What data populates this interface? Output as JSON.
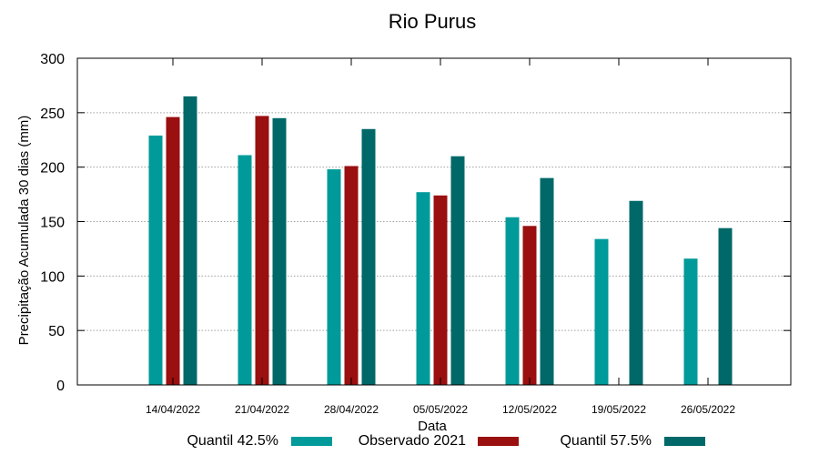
{
  "chart_data": {
    "type": "bar",
    "title": "Rio Purus",
    "xlabel": "Data",
    "ylabel": "Precipitação Acumulada 30 dias (mm)",
    "ylim": [
      0,
      300
    ],
    "yticks": [
      0,
      50,
      100,
      150,
      200,
      250,
      300
    ],
    "grid": true,
    "legend_position": "bottom",
    "categories": [
      "14/04/2022",
      "21/04/2022",
      "28/04/2022",
      "05/05/2022",
      "12/05/2022",
      "19/05/2022",
      "26/05/2022"
    ],
    "series": [
      {
        "name": "Quantil 42.5%",
        "color": "#009a9a",
        "values": [
          229,
          211,
          198,
          177,
          154,
          134,
          116
        ]
      },
      {
        "name": "Observado 2021",
        "color": "#9a0f0f",
        "values": [
          246,
          247,
          201,
          174,
          146,
          null,
          null
        ]
      },
      {
        "name": "Quantil 57.5%",
        "color": "#006868",
        "values": [
          265,
          245,
          235,
          210,
          190,
          169,
          144
        ]
      }
    ]
  }
}
